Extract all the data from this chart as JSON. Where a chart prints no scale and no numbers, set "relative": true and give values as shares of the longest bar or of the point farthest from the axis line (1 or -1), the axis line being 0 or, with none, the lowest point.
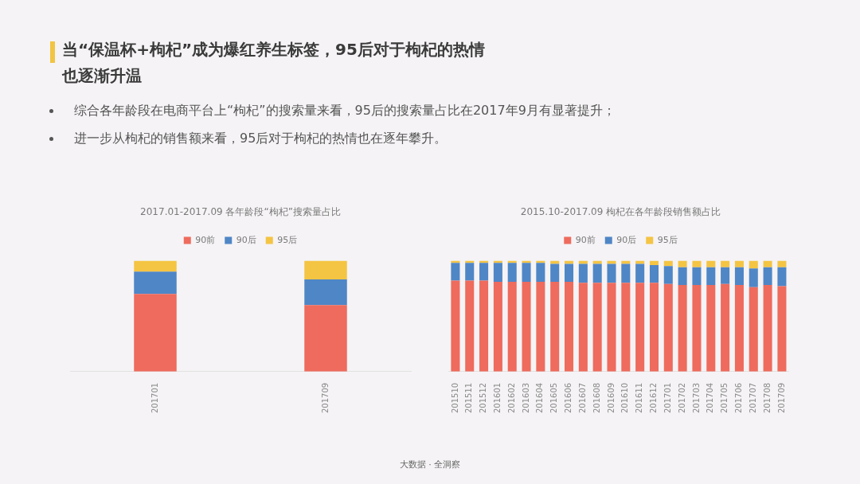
{
  "chart_data": [
    {
      "type": "other",
      "title": "当“保温杯+枸杞”成为爆红养生标签，95后对于枸杞的热情也逐渐升温",
      "annotations": [
        "综合各年龄段在电商平台上“枸杞”的搜索量来看，95后的搜索量占比在2017年9月有显著提升；",
        "进一步从枸杞的销售额来看，95后对于枸杞的热情也在逐年攀升。"
      ]
    },
    {
      "type": "bar",
      "title": "2017.01-2017.09 各年龄段“枸杞”搜索量占比",
      "categories": [
        "201701",
        "201709"
      ],
      "stacked": true,
      "relative": true,
      "legend": "top",
      "series": [
        {
          "name": "90前",
          "color": "#ee6b5d",
          "values": [
            0.7,
            0.6
          ]
        },
        {
          "name": "90后",
          "color": "#4f86c6",
          "values": [
            0.2,
            0.23
          ]
        },
        {
          "name": "95后",
          "color": "#f4c443",
          "values": [
            0.1,
            0.17
          ]
        }
      ]
    },
    {
      "type": "bar",
      "title": "2015.10-2017.09 枸杞在各年龄段销售额占比",
      "categories": [
        "201510",
        "201511",
        "201512",
        "201601",
        "201602",
        "201603",
        "201604",
        "201605",
        "201606",
        "201607",
        "201608",
        "201609",
        "201610",
        "201611",
        "201612",
        "201701",
        "201702",
        "201703",
        "201704",
        "201705",
        "201706",
        "201707",
        "201708",
        "201709"
      ],
      "stacked": true,
      "relative": true,
      "legend": "top",
      "series": [
        {
          "name": "90前",
          "color": "#ee6b5d",
          "values": [
            0.82,
            0.82,
            0.82,
            0.81,
            0.81,
            0.81,
            0.81,
            0.81,
            0.81,
            0.8,
            0.8,
            0.8,
            0.8,
            0.8,
            0.8,
            0.79,
            0.78,
            0.78,
            0.78,
            0.79,
            0.78,
            0.76,
            0.78,
            0.77
          ]
        },
        {
          "name": "90后",
          "color": "#4f86c6",
          "values": [
            0.16,
            0.16,
            0.16,
            0.17,
            0.17,
            0.17,
            0.17,
            0.16,
            0.16,
            0.17,
            0.17,
            0.17,
            0.17,
            0.17,
            0.16,
            0.16,
            0.16,
            0.16,
            0.16,
            0.15,
            0.16,
            0.17,
            0.16,
            0.17
          ]
        },
        {
          "name": "95后",
          "color": "#f4c443",
          "values": [
            0.02,
            0.02,
            0.02,
            0.02,
            0.02,
            0.02,
            0.02,
            0.03,
            0.03,
            0.03,
            0.03,
            0.03,
            0.03,
            0.03,
            0.04,
            0.05,
            0.06,
            0.06,
            0.06,
            0.06,
            0.06,
            0.07,
            0.06,
            0.06
          ]
        }
      ]
    },
    {
      "type": "other",
      "annotations": [
        "大数据 · 全洞察"
      ]
    }
  ]
}
